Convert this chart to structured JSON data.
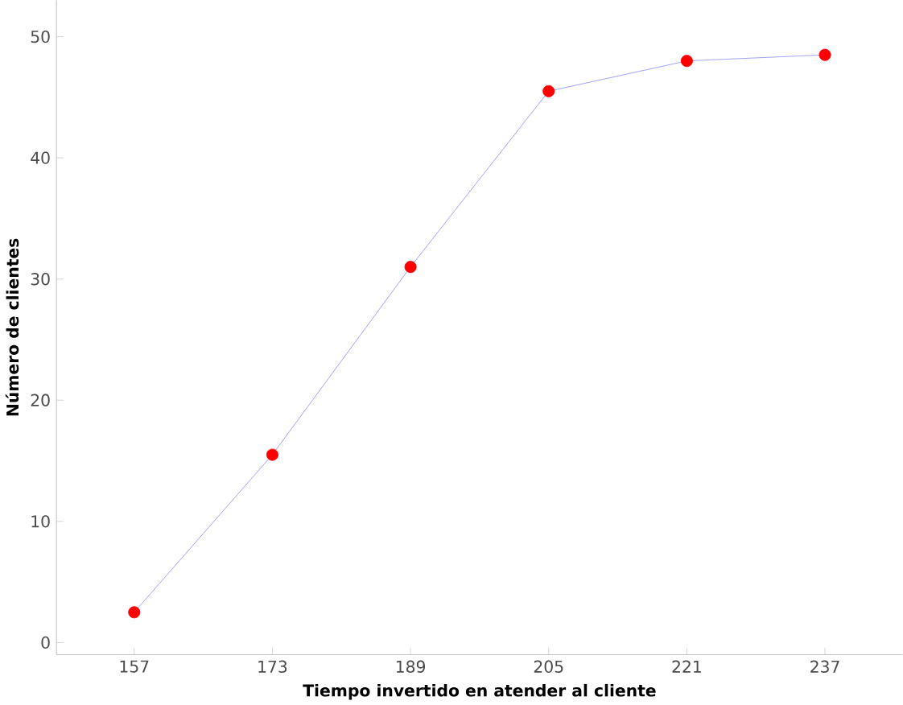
{
  "chart_data": {
    "type": "line",
    "xlabel": "Tiempo invertido en atender al cliente",
    "ylabel": "Número de clientes",
    "x": [
      157,
      173,
      189,
      205,
      221,
      237
    ],
    "series": [
      {
        "color": "#8c8cff",
        "colors": [
          "#ff0000",
          "#ff0000",
          "#ff0000",
          "#ff0000",
          "#ff0000",
          "#ff0000"
        ],
        "values": [
          2.5,
          15.5,
          31,
          45.5,
          48,
          48.5
        ]
      }
    ],
    "xlim": [
      148,
      246
    ],
    "ylim": [
      -1,
      53
    ],
    "xticks": [
      157,
      173,
      189,
      205,
      221,
      237
    ],
    "yticks": [
      0,
      10,
      20,
      30,
      40,
      50
    ],
    "grid": false,
    "marker": "circle",
    "line_style": "solid"
  }
}
